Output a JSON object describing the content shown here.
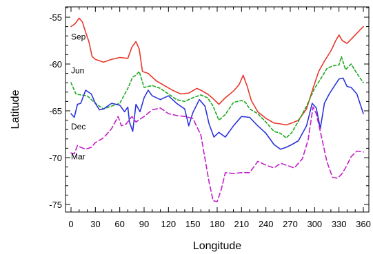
{
  "chart_data": {
    "type": "line",
    "title": "",
    "xlabel": "Longitude",
    "ylabel": "Latitude",
    "xlim": [
      0,
      360
    ],
    "ylim": [
      -75.5,
      -53.5
    ],
    "xticks": [
      0,
      30,
      60,
      90,
      120,
      150,
      180,
      210,
      240,
      270,
      300,
      330,
      360
    ],
    "yticks": [
      -55,
      -60,
      -65,
      -70,
      -75
    ],
    "xtick_labels": [
      "0",
      "30",
      "60",
      "90",
      "120",
      "150",
      "180",
      "210",
      "240",
      "270",
      "300",
      "330",
      "360"
    ],
    "ytick_labels": [
      "-55",
      "-60",
      "-65",
      "-70",
      "-75"
    ],
    "grid": false,
    "legend": "inline-left",
    "series": [
      {
        "name": "Sep",
        "color": "#e8382e",
        "dash": "solid",
        "label_at": [
          0,
          -57.4
        ],
        "x": [
          0,
          5,
          10,
          14,
          18,
          22,
          26,
          30,
          40,
          50,
          60,
          70,
          75,
          80,
          84,
          88,
          95,
          105,
          115,
          125,
          135,
          145,
          155,
          162,
          168,
          175,
          182,
          190,
          200,
          207,
          212,
          217,
          222,
          230,
          240,
          250,
          258,
          265,
          272,
          280,
          290,
          298,
          305,
          312,
          320,
          326,
          330,
          334,
          340,
          350,
          360
        ],
        "y": [
          -56,
          -55.7,
          -55.1,
          -55.5,
          -56.6,
          -57.6,
          -59.2,
          -59.5,
          -59.8,
          -59.5,
          -59.3,
          -59.4,
          -58.2,
          -57.6,
          -58.4,
          -60.8,
          -61,
          -61.8,
          -62.3,
          -62.8,
          -63.2,
          -63.1,
          -62.6,
          -62.9,
          -63.2,
          -63.7,
          -64.3,
          -63.6,
          -62.9,
          -62.2,
          -61.2,
          -62.4,
          -63.9,
          -65.1,
          -65.8,
          -66.3,
          -66.4,
          -66.5,
          -66.3,
          -66,
          -64.8,
          -62.6,
          -60.8,
          -59.7,
          -58.6,
          -57.5,
          -56.9,
          -57.5,
          -57.8,
          -56.9,
          -56
        ]
      },
      {
        "name": "Jun",
        "color": "#1aa81e",
        "dash": "4,3",
        "label_at": [
          0,
          -61.0
        ],
        "x": [
          0,
          6,
          12,
          20,
          30,
          40,
          50,
          60,
          70,
          76,
          80,
          84,
          90,
          100,
          110,
          120,
          130,
          140,
          150,
          160,
          168,
          175,
          182,
          190,
          200,
          210,
          215,
          220,
          230,
          240,
          250,
          258,
          265,
          272,
          280,
          290,
          300,
          308,
          315,
          322,
          330,
          333,
          338,
          345,
          352,
          360
        ],
        "y": [
          -62,
          -63.2,
          -63.3,
          -63.4,
          -64.2,
          -64.8,
          -64.5,
          -64.2,
          -62.6,
          -61.4,
          -61.2,
          -60.8,
          -62.5,
          -62.3,
          -62.6,
          -63.2,
          -63.8,
          -64,
          -63.6,
          -63.3,
          -63.6,
          -64.5,
          -66,
          -65.4,
          -64.1,
          -63.9,
          -64.1,
          -64.8,
          -65.3,
          -66.2,
          -67.2,
          -67.4,
          -67.9,
          -67.3,
          -66.1,
          -64.5,
          -62.6,
          -61.5,
          -60.5,
          -60.2,
          -60.1,
          -59.2,
          -60.6,
          -60,
          -61,
          -62
        ]
      },
      {
        "name": "Dec",
        "color": "#2b33d9",
        "dash": "solid",
        "label_at": [
          0,
          -67.0
        ],
        "x": [
          0,
          4,
          8,
          12,
          18,
          25,
          30,
          35,
          40,
          50,
          60,
          66,
          70,
          72,
          76,
          80,
          85,
          90,
          95,
          100,
          110,
          120,
          130,
          140,
          145,
          150,
          158,
          165,
          170,
          176,
          182,
          190,
          200,
          210,
          220,
          230,
          240,
          250,
          258,
          265,
          272,
          280,
          290,
          297,
          302,
          307,
          312,
          318,
          324,
          330,
          335,
          340,
          345,
          352,
          360
        ],
        "y": [
          -65.3,
          -65.7,
          -64.3,
          -64.2,
          -62.8,
          -63.2,
          -64.2,
          -64.9,
          -64.8,
          -64.2,
          -64.4,
          -65.1,
          -64.6,
          -66.2,
          -67.2,
          -64.3,
          -65.1,
          -63.6,
          -62.8,
          -63.4,
          -63.8,
          -63.4,
          -64.2,
          -64.8,
          -66.6,
          -65.2,
          -63.8,
          -64.5,
          -66.4,
          -67.8,
          -67.3,
          -67.8,
          -66.6,
          -65.6,
          -65.7,
          -66.6,
          -67.4,
          -68.6,
          -69.1,
          -68.9,
          -68.6,
          -68.2,
          -66.6,
          -64.2,
          -64.7,
          -66.9,
          -64.2,
          -63.2,
          -62.4,
          -61.6,
          -61.5,
          -62.4,
          -62.5,
          -63.2,
          -65.3
        ]
      },
      {
        "name": "Mar",
        "color": "#c21ec9",
        "dash": "7,4",
        "label_at": [
          0,
          -70.2
        ],
        "x": [
          0,
          4,
          8,
          12,
          18,
          25,
          30,
          40,
          50,
          58,
          62,
          68,
          75,
          80,
          90,
          100,
          110,
          120,
          130,
          140,
          150,
          160,
          165,
          170,
          175,
          180,
          185,
          190,
          200,
          210,
          220,
          230,
          240,
          250,
          258,
          265,
          275,
          285,
          292,
          298,
          302,
          308,
          315,
          322,
          328,
          333,
          338,
          345,
          352,
          360
        ],
        "y": [
          -69.5,
          -69.6,
          -68.7,
          -68.9,
          -69.1,
          -68.9,
          -68.4,
          -67.9,
          -66.9,
          -65.6,
          -66.6,
          -66.4,
          -65.6,
          -66.2,
          -65.6,
          -64.9,
          -64.7,
          -65.3,
          -65.5,
          -65.6,
          -65.8,
          -67.6,
          -70.1,
          -72.6,
          -74.6,
          -74.7,
          -73.4,
          -71.6,
          -71.7,
          -71.6,
          -71.6,
          -70.4,
          -70.8,
          -71.1,
          -70.6,
          -70.8,
          -71.1,
          -70.1,
          -68.1,
          -64.6,
          -65.3,
          -67.6,
          -70.4,
          -72.1,
          -72.2,
          -71.8,
          -71.1,
          -69.9,
          -69.3,
          -69.4
        ]
      }
    ]
  }
}
